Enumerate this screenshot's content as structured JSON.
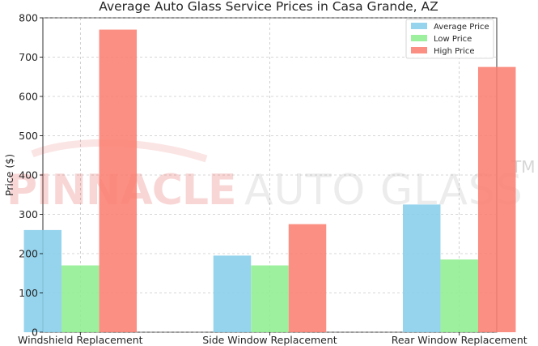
{
  "chart_data": {
    "type": "bar",
    "title": "Average Auto Glass Service Prices in Casa Grande, AZ",
    "xlabel": "",
    "ylabel": "Price ($)",
    "categories": [
      "Windshield Replacement",
      "Side Window Replacement",
      "Rear Window Replacement"
    ],
    "series": [
      {
        "name": "Average Price",
        "values": [
          260,
          195,
          325
        ],
        "color": "#87ceeb"
      },
      {
        "name": "Low Price",
        "values": [
          170,
          170,
          185
        ],
        "color": "#90ee90"
      },
      {
        "name": "High Price",
        "values": [
          770,
          275,
          675
        ],
        "color": "#fa8072"
      }
    ],
    "ylim": [
      0,
      800
    ],
    "yticks": [
      "0",
      "100",
      "200",
      "300",
      "400",
      "500",
      "600",
      "700",
      "800"
    ],
    "grid": true,
    "grid_style": "dashed",
    "legend_position": "top-right"
  },
  "watermark": {
    "brand": "PINNACLE",
    "rest": "AUTO GLASS",
    "tm": "TM"
  }
}
